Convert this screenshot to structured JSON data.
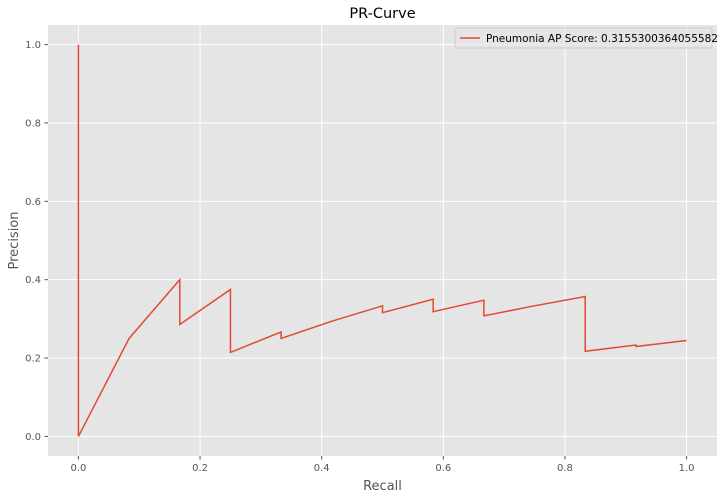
{
  "chart_data": {
    "type": "line",
    "title": "PR-Curve",
    "xlabel": "Recall",
    "ylabel": "Precision",
    "xlim": [
      -0.05,
      1.05
    ],
    "ylim": [
      -0.05,
      1.05
    ],
    "xticks": [
      0.0,
      0.2,
      0.4,
      0.6,
      0.8,
      1.0
    ],
    "xtick_labels": [
      "0.0",
      "0.2",
      "0.4",
      "0.6",
      "0.8",
      "1.0"
    ],
    "yticks": [
      0.0,
      0.2,
      0.4,
      0.6,
      0.8,
      1.0
    ],
    "ytick_labels": [
      "0.0",
      "0.2",
      "0.4",
      "0.6",
      "0.8",
      "1.0"
    ],
    "grid": true,
    "legend_position": "top-right",
    "series": [
      {
        "name": "Pneumonia AP Score: 0.3155300364055582",
        "color": "#e24a33",
        "x": [
          0.0,
          0.0,
          0.0833,
          0.1667,
          0.1667,
          0.25,
          0.25,
          0.3333,
          0.3333,
          0.4167,
          0.5,
          0.5,
          0.5833,
          0.5833,
          0.6667,
          0.6667,
          0.75,
          0.8333,
          0.8333,
          0.9167,
          0.9167,
          1.0
        ],
        "y": [
          1.0,
          0.0,
          0.25,
          0.4,
          0.2857,
          0.375,
          0.2143,
          0.2667,
          0.25,
          0.2941,
          0.3333,
          0.3158,
          0.35,
          0.3182,
          0.3478,
          0.3077,
          0.3333,
          0.3571,
          0.2174,
          0.2333,
          0.2295,
          0.2448
        ]
      }
    ]
  }
}
